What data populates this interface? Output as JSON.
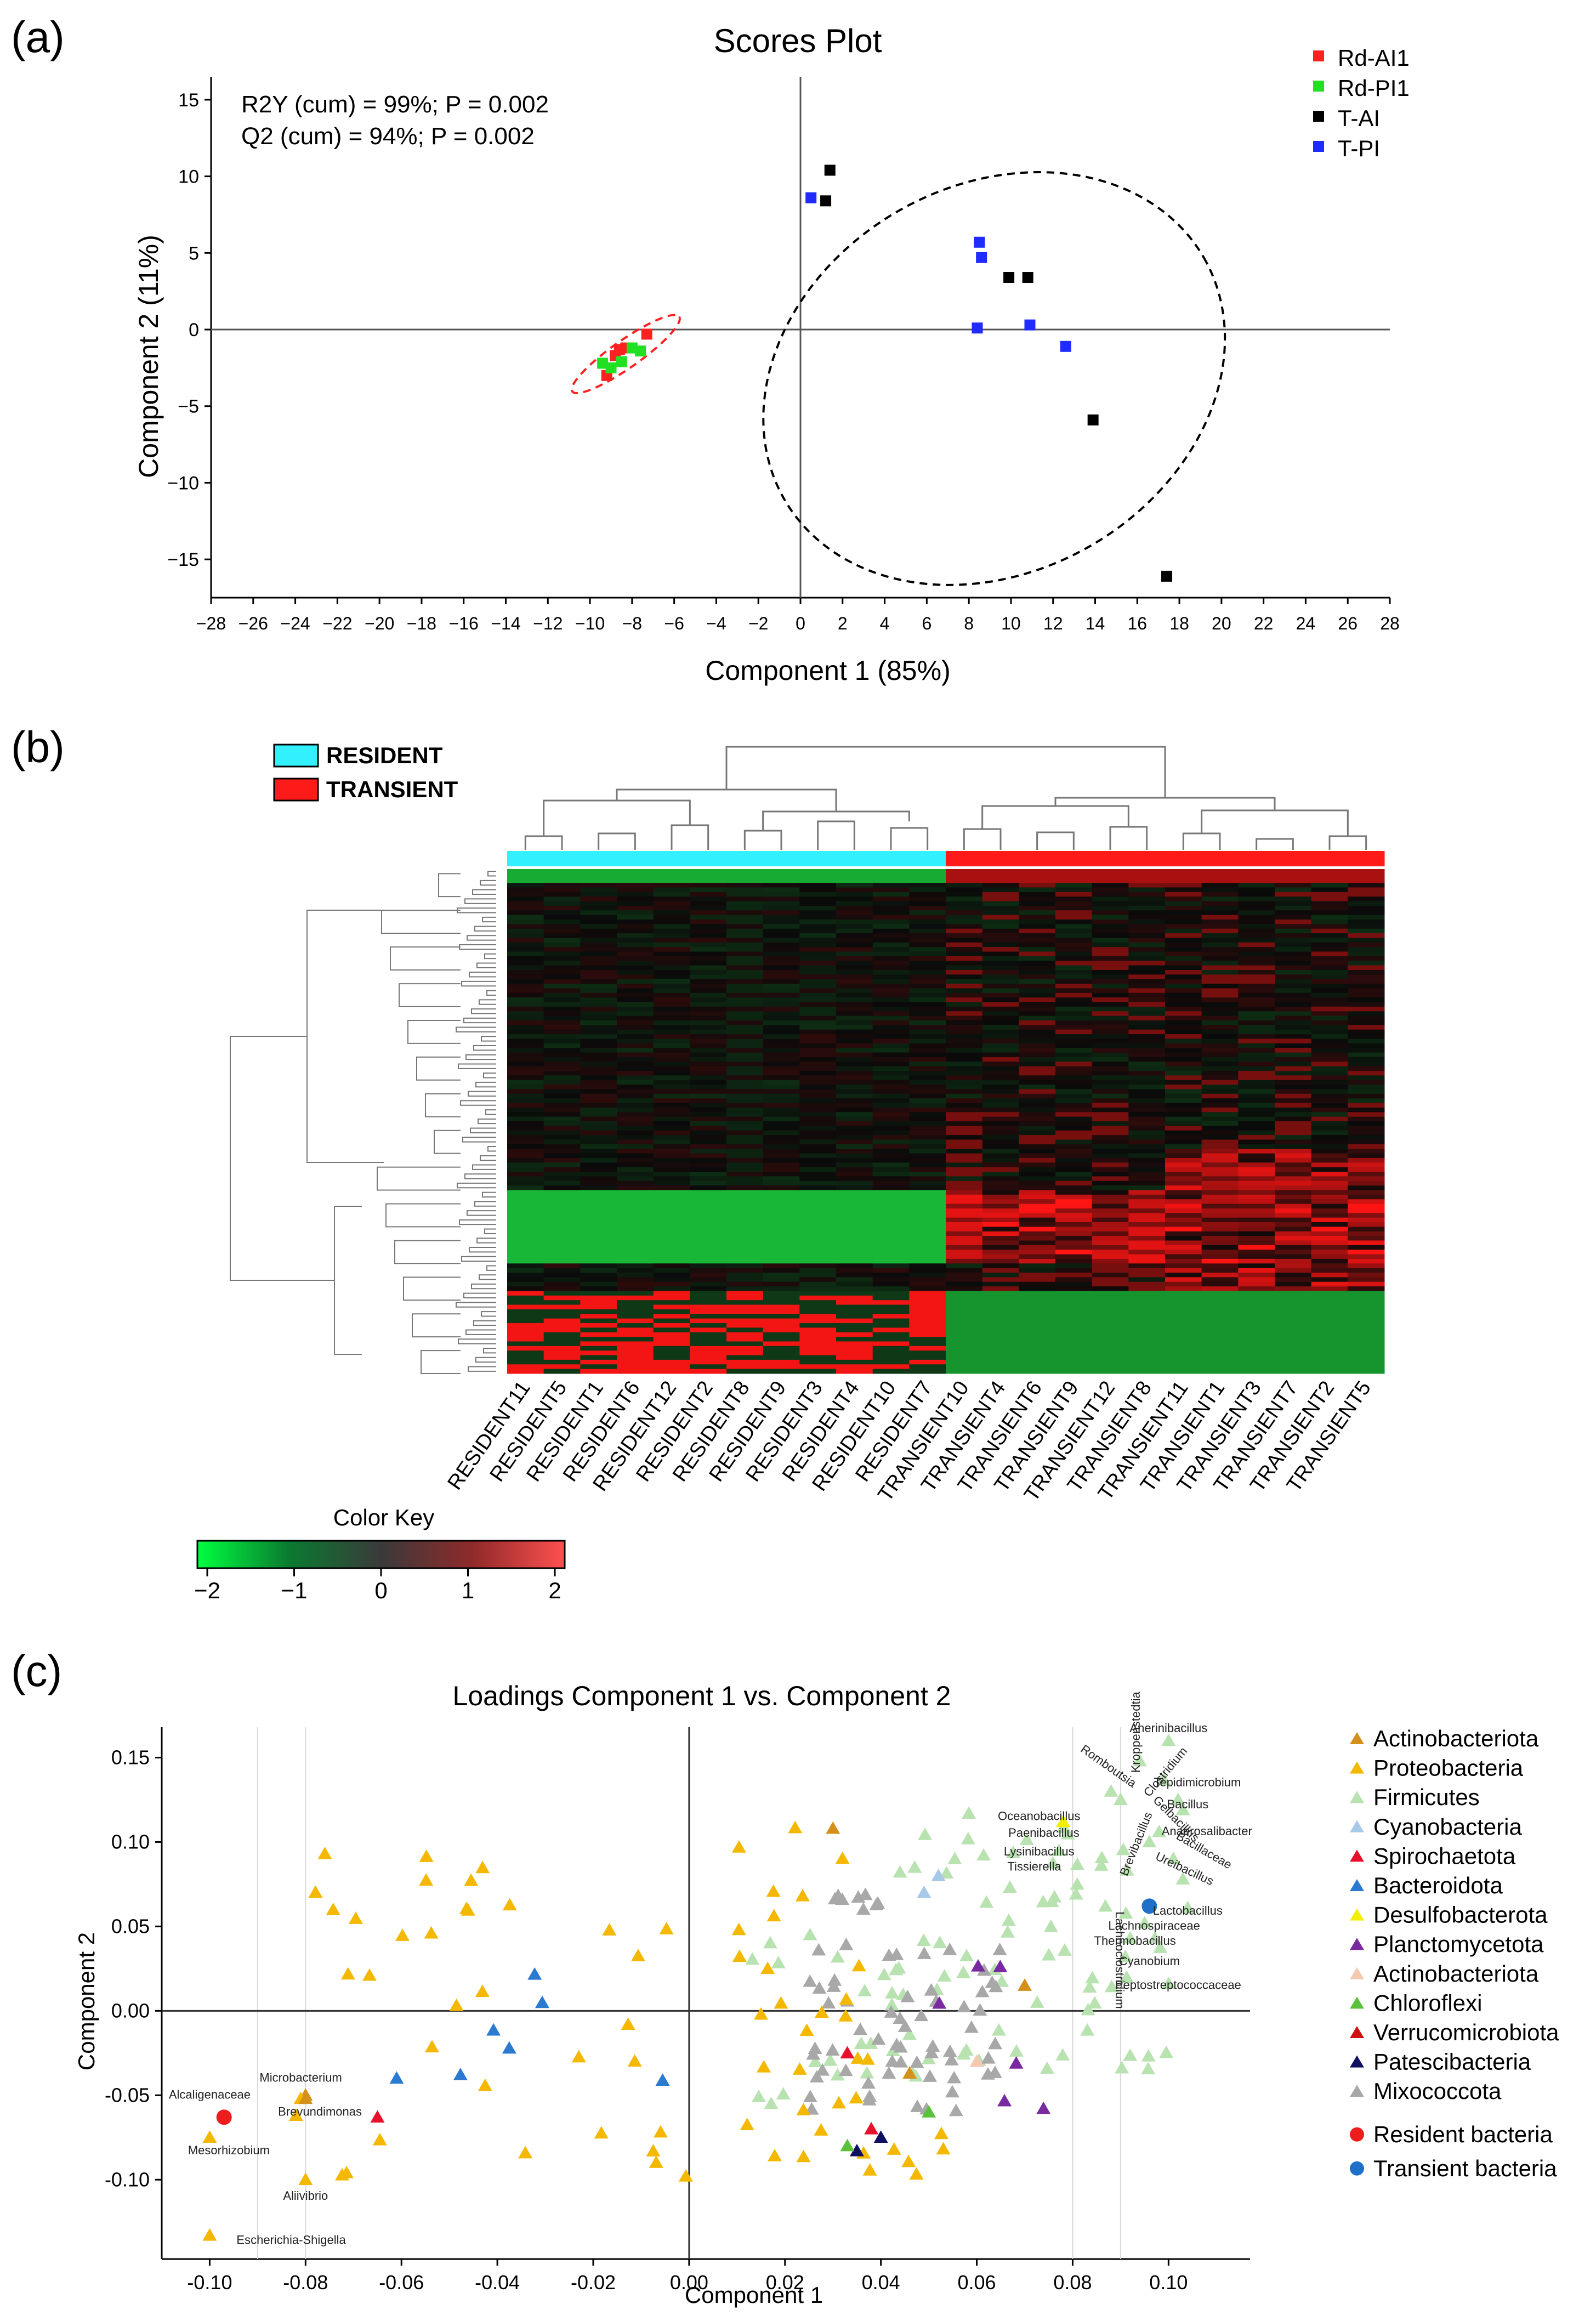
{
  "colors": {
    "red": "#ff2020",
    "green": "#21e021",
    "black": "#000000",
    "blue": "#1f2bff",
    "cyan": "#33f0ff",
    "heat_red": "#ff1a1a",
    "actinobacteriota": "#d4901a",
    "proteobacteria": "#f5b800",
    "firmicutes": "#b8e2b0",
    "cyanobacteria": "#a8c8e8",
    "spirochaetota": "#e8102a",
    "bacteroidota": "#2a7ad0",
    "desulfobacterota": "#f0f000",
    "planctomycetota": "#7a2aa0",
    "actinobacteriota2": "#f5c8b0",
    "chloroflexi": "#5ac23a",
    "verrucomicrobiota": "#d01010",
    "patescibacteria": "#101060",
    "mixococcota": "#a8a8a8",
    "resident": "#ee1c1c",
    "transient": "#1f70c8"
  },
  "panel_labels": {
    "a": "(a)",
    "b": "(b)",
    "c": "(c)"
  },
  "chart_data": [
    {
      "type": "scatter",
      "title": "Scores Plot",
      "xlabel": "Component 1 (85%)",
      "ylabel": "Component 2 (11%)",
      "xlim": [
        -28,
        28
      ],
      "ylim": [
        -17.5,
        16.5
      ],
      "xticks": [
        -28,
        -26,
        -24,
        -22,
        -20,
        -18,
        -16,
        -14,
        -12,
        -10,
        -8,
        -6,
        -4,
        -2,
        0,
        2,
        4,
        6,
        8,
        10,
        12,
        14,
        16,
        18,
        20,
        22,
        24,
        26,
        28
      ],
      "yticks": [
        15,
        10,
        5,
        0,
        -5,
        -10,
        -15
      ],
      "annotations": [
        "R2Y (cum) = 99%; P = 0.002",
        "Q2 (cum) = 94%; P = 0.002"
      ],
      "legend_position": "top-right",
      "series": [
        {
          "name": "Rd-AI1",
          "color": "#ff2020",
          "points": [
            [
              -9.2,
              -3.0
            ],
            [
              -8.8,
              -1.7
            ],
            [
              -8.6,
              -1.3
            ],
            [
              -7.3,
              -0.3
            ],
            [
              -8.3,
              -1.2
            ]
          ]
        },
        {
          "name": "Rd-PI1",
          "color": "#21e021",
          "points": [
            [
              -9.4,
              -2.2
            ],
            [
              -9.0,
              -2.5
            ],
            [
              -8.5,
              -2.1
            ],
            [
              -8.0,
              -1.2
            ],
            [
              -7.6,
              -1.4
            ]
          ]
        },
        {
          "name": "T-AI",
          "color": "#000000",
          "points": [
            [
              1.4,
              10.4
            ],
            [
              1.2,
              8.4
            ],
            [
              9.9,
              3.4
            ],
            [
              10.8,
              3.4
            ],
            [
              13.9,
              -5.9
            ],
            [
              17.4,
              -16.1
            ]
          ]
        },
        {
          "name": "T-PI",
          "color": "#1f2bff",
          "points": [
            [
              0.5,
              8.6
            ],
            [
              8.5,
              5.7
            ],
            [
              8.6,
              4.7
            ],
            [
              8.4,
              0.1
            ],
            [
              10.9,
              0.3
            ],
            [
              12.6,
              -1.1
            ]
          ]
        }
      ],
      "ellipses": [
        {
          "center": [
            -8.3,
            -1.6
          ],
          "rx": 3.1,
          "ry": 1.5,
          "rotate_deg": -35,
          "color": "#ff2020"
        },
        {
          "center": [
            9.2,
            -3.2
          ],
          "rx": 11.5,
          "ry": 21.0,
          "rotate_deg": -30,
          "color": "#000000"
        }
      ]
    },
    {
      "type": "heatmap",
      "legend": [
        {
          "label": "RESIDENT",
          "color": "#33f0ff"
        },
        {
          "label": "TRANSIENT",
          "color": "#ff1a1a"
        }
      ],
      "columns": [
        "RESIDENT11",
        "RESIDENT5",
        "RESIDENT1",
        "RESIDENT6",
        "RESIDENT12",
        "RESIDENT2",
        "RESIDENT8",
        "RESIDENT9",
        "RESIDENT3",
        "RESIDENT4",
        "RESIDENT10",
        "RESIDENT7",
        "TRANSIENT10",
        "TRANSIENT4",
        "TRANSIENT6",
        "TRANSIENT9",
        "TRANSIENT12",
        "TRANSIENT8",
        "TRANSIENT11",
        "TRANSIENT1",
        "TRANSIENT3",
        "TRANSIENT7",
        "TRANSIENT2",
        "TRANSIENT5"
      ],
      "column_groups": [
        "RESIDENT",
        "RESIDENT",
        "RESIDENT",
        "RESIDENT",
        "RESIDENT",
        "RESIDENT",
        "RESIDENT",
        "RESIDENT",
        "RESIDENT",
        "RESIDENT",
        "RESIDENT",
        "RESIDENT",
        "TRANSIENT",
        "TRANSIENT",
        "TRANSIENT",
        "TRANSIENT",
        "TRANSIENT",
        "TRANSIENT",
        "TRANSIENT",
        "TRANSIENT",
        "TRANSIENT",
        "TRANSIENT",
        "TRANSIENT",
        "TRANSIENT"
      ],
      "color_key": {
        "title": "Color Key",
        "ticks": [
          "−2",
          "−1",
          "0",
          "1",
          "2"
        ],
        "range": [
          -2,
          2
        ],
        "colors": [
          "#00ff40",
          "#0a7a30",
          "#3a3a3a",
          "#902a2a",
          "#ff5050"
        ]
      }
    },
    {
      "type": "scatter",
      "title": "Loadings Component 1 vs. Component 2",
      "xlabel": "Component 1",
      "ylabel": "Component 2",
      "xlim": [
        -0.11,
        0.117
      ],
      "ylim": [
        -0.147,
        0.168
      ],
      "xticks": [
        "-0.10",
        "-0.08",
        "-0.06",
        "-0.04",
        "-0.02",
        "0.00",
        "0.02",
        "0.04",
        "0.06",
        "0.08",
        "0.10"
      ],
      "xtick_values": [
        -0.1,
        -0.08,
        -0.06,
        -0.04,
        -0.02,
        0.0,
        0.02,
        0.04,
        0.06,
        0.08,
        0.1
      ],
      "yticks": [
        "0.15",
        "0.10",
        "0.05",
        "0.00",
        "-0.05",
        "-0.10"
      ],
      "ytick_values": [
        0.15,
        0.1,
        0.05,
        0.0,
        -0.05,
        -0.1
      ],
      "vlines": [
        -0.09,
        -0.08,
        0.08,
        0.09
      ],
      "legend_position": "right",
      "legend": [
        {
          "name": "Actinobacteriota",
          "color": "#d4901a",
          "marker": "triangle"
        },
        {
          "name": "Proteobacteria",
          "color": "#f5b800",
          "marker": "triangle"
        },
        {
          "name": "Firmicutes",
          "color": "#b8e2b0",
          "marker": "triangle"
        },
        {
          "name": "Cyanobacteria",
          "color": "#a8c8e8",
          "marker": "triangle"
        },
        {
          "name": "Spirochaetota",
          "color": "#e8102a",
          "marker": "triangle"
        },
        {
          "name": "Bacteroidota",
          "color": "#2a7ad0",
          "marker": "triangle"
        },
        {
          "name": "Desulfobacterota",
          "color": "#f0f000",
          "marker": "triangle"
        },
        {
          "name": "Planctomycetota",
          "color": "#7a2aa0",
          "marker": "triangle"
        },
        {
          "name": "Actinobacteriota",
          "color": "#f5c8b0",
          "marker": "triangle"
        },
        {
          "name": "Chloroflexi",
          "color": "#5ac23a",
          "marker": "triangle"
        },
        {
          "name": "Verrucomicrobiota",
          "color": "#d01010",
          "marker": "triangle"
        },
        {
          "name": "Patescibacteria",
          "color": "#101060",
          "marker": "triangle"
        },
        {
          "name": "Mixococcota",
          "color": "#a8a8a8",
          "marker": "triangle"
        },
        {
          "name": "Resident bacteria",
          "color": "#ee1c1c",
          "marker": "circle"
        },
        {
          "name": "Transient bacteria",
          "color": "#1f70c8",
          "marker": "circle"
        }
      ],
      "circles": [
        {
          "group": "Resident bacteria",
          "x": -0.097,
          "y": -0.063
        },
        {
          "group": "Transient bacteria",
          "x": 0.096,
          "y": 0.062
        }
      ],
      "point_labels": [
        {
          "text": "Alcaligenaceae",
          "x": -0.1,
          "y": -0.052
        },
        {
          "text": "Microbacterium",
          "x": -0.081,
          "y": -0.042
        },
        {
          "text": "Brevundimonas",
          "x": -0.077,
          "y": -0.062
        },
        {
          "text": "Mesorhizobium",
          "x": -0.096,
          "y": -0.085
        },
        {
          "text": "Aliivibrio",
          "x": -0.08,
          "y": -0.112
        },
        {
          "text": "Escherichia-Shigella",
          "x": -0.083,
          "y": -0.138
        },
        {
          "text": "Oceanobacillus",
          "x": 0.073,
          "y": 0.113
        },
        {
          "text": "Paenibacillus",
          "x": 0.074,
          "y": 0.103
        },
        {
          "text": "Lysinibacillus",
          "x": 0.073,
          "y": 0.092
        },
        {
          "text": "Tissierella",
          "x": 0.072,
          "y": 0.083
        },
        {
          "text": "Anerinibacillus",
          "x": 0.1,
          "y": 0.165
        },
        {
          "text": "Tepidimicrobium",
          "x": 0.106,
          "y": 0.133
        },
        {
          "text": "Bacillus",
          "x": 0.104,
          "y": 0.12
        },
        {
          "text": "Anaerosalibacter",
          "x": 0.108,
          "y": 0.104
        },
        {
          "text": "Lachnospiraceae",
          "x": 0.097,
          "y": 0.048
        },
        {
          "text": "Thermobacillus",
          "x": 0.093,
          "y": 0.039
        },
        {
          "text": "Cyanobium",
          "x": 0.096,
          "y": 0.027
        },
        {
          "text": "Peptostreptococcaceae",
          "x": 0.102,
          "y": 0.013
        },
        {
          "text": "Lactobacillus",
          "x": 0.104,
          "y": 0.057
        }
      ],
      "rotated_labels": [
        {
          "text": "Kroppenstedtia",
          "x": 0.094,
          "y": 0.165,
          "angle": -90
        },
        {
          "text": "Romboutsia",
          "x": 0.087,
          "y": 0.143,
          "angle": 35
        },
        {
          "text": "Clostridium",
          "x": 0.1,
          "y": 0.14,
          "angle": -50
        },
        {
          "text": "Gelbacillus",
          "x": 0.101,
          "y": 0.112,
          "angle": 45
        },
        {
          "text": "Bacillaceae",
          "x": 0.107,
          "y": 0.093,
          "angle": 30
        },
        {
          "text": "Ureibacillus",
          "x": 0.103,
          "y": 0.082,
          "angle": 25
        },
        {
          "text": "Brevibacillus",
          "x": 0.094,
          "y": 0.098,
          "angle": -68
        },
        {
          "text": "Lachnoclostridium",
          "x": 0.089,
          "y": 0.03,
          "angle": 90
        }
      ]
    }
  ]
}
